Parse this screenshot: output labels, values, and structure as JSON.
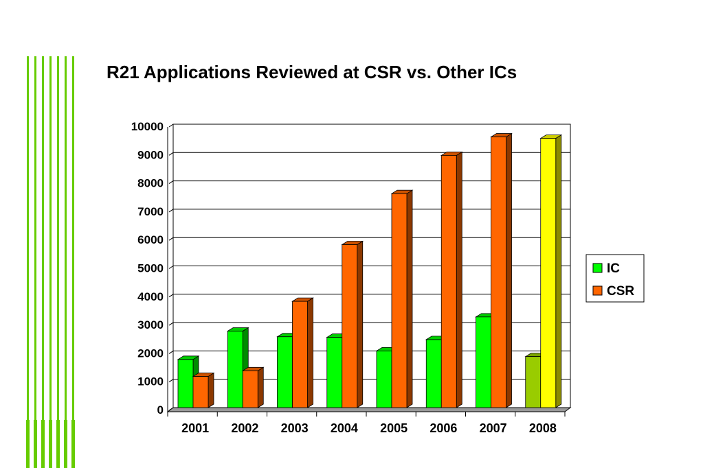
{
  "colors": {
    "banner": "#66cc00",
    "ic": "#00ff00",
    "csr": "#ff6600",
    "ic_2008": "#99cc00",
    "csr_2008": "#ffff00"
  },
  "logo": {
    "icon": "csr-logo-icon"
  },
  "chart_data": {
    "type": "bar",
    "title": "R21 Applications Reviewed at CSR vs. Other ICs",
    "categories": [
      "2001",
      "2002",
      "2003",
      "2004",
      "2005",
      "2006",
      "2007",
      "2008"
    ],
    "series": [
      {
        "name": "IC",
        "values": [
          1700,
          2700,
          2500,
          2480,
          2000,
          2400,
          3200,
          1800
        ]
      },
      {
        "name": "CSR",
        "values": [
          1100,
          1300,
          3750,
          5750,
          7550,
          8900,
          9550,
          9500
        ]
      }
    ],
    "ylim": [
      0,
      10000
    ],
    "yticks": [
      "0",
      "1000",
      "2000",
      "3000",
      "4000",
      "5000",
      "6000",
      "7000",
      "8000",
      "9000",
      "10000"
    ],
    "grid": true,
    "legend": "right",
    "highlight_category": "2008"
  }
}
